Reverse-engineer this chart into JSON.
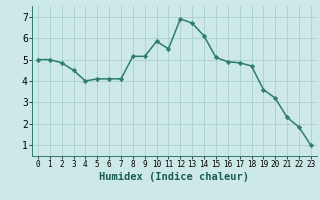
{
  "xlabel": "Humidex (Indice chaleur)",
  "x": [
    0,
    1,
    2,
    3,
    4,
    5,
    6,
    7,
    8,
    9,
    10,
    11,
    12,
    13,
    14,
    15,
    16,
    17,
    18,
    19,
    20,
    21,
    22,
    23
  ],
  "y": [
    5.0,
    5.0,
    4.85,
    4.5,
    4.0,
    4.1,
    4.1,
    4.1,
    5.15,
    5.15,
    5.85,
    5.5,
    6.9,
    6.7,
    6.1,
    5.1,
    4.9,
    4.85,
    4.7,
    3.6,
    3.2,
    2.3,
    1.85,
    1.0
  ],
  "line_color": "#2e7d6e",
  "marker": "D",
  "marker_size": 2.2,
  "bg_color": "#cce9e7",
  "grid_color": "#aacfcc",
  "ylim": [
    0.5,
    7.5
  ],
  "xlim": [
    -0.5,
    23.5
  ],
  "yticks": [
    1,
    2,
    3,
    4,
    5,
    6,
    7
  ],
  "xticks": [
    0,
    1,
    2,
    3,
    4,
    5,
    6,
    7,
    8,
    9,
    10,
    11,
    12,
    13,
    14,
    15,
    16,
    17,
    18,
    19,
    20,
    21,
    22,
    23
  ],
  "xlabel_fontsize": 7.5,
  "tick_fontsize": 6.5,
  "line_width": 1.1,
  "spine_color": "#2e7d6e"
}
